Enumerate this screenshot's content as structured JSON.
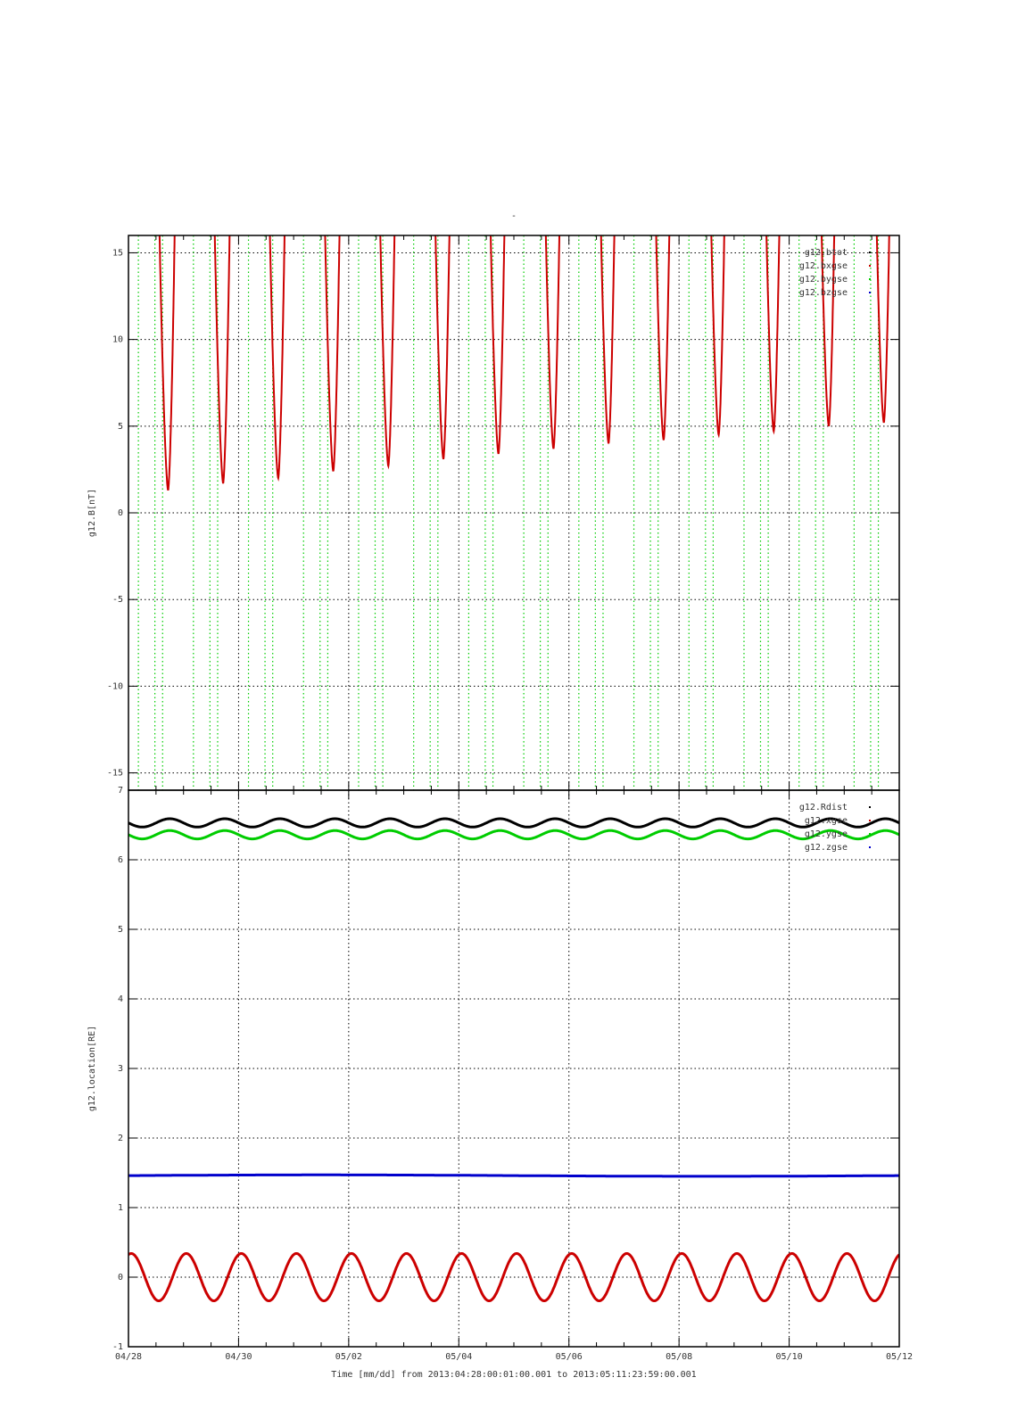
{
  "page": {
    "title": "-",
    "footer": "Time [mm/dd]  from 2013:04:28:00:01:00.001  to  2013:05:11:23:59:00.001"
  },
  "chart_data": [
    {
      "type": "line",
      "ylabel": "g12.B[nT]",
      "xlabel": "",
      "xlim": [
        "04/28",
        "05/12"
      ],
      "ylim": [
        -16,
        16
      ],
      "ytick_labels": [
        "15",
        "10",
        "5",
        "0",
        "-5",
        "-10",
        "-15"
      ],
      "yticks": [
        15,
        10,
        5,
        0,
        -5,
        -10,
        -15
      ],
      "grid": true,
      "legend": "top-right",
      "series": [
        {
          "name": "g12.btot",
          "color": "#000000",
          "values": []
        },
        {
          "name": "g12.bxgse",
          "color": "#cc0000",
          "minima_day_offsets": [
            0.72,
            1.72,
            2.72,
            3.72,
            4.72,
            5.72,
            6.72,
            7.72,
            8.72,
            9.72,
            10.72,
            11.72,
            12.72,
            13.72
          ],
          "minima_values": [
            1.3,
            1.7,
            2.0,
            2.4,
            2.7,
            3.1,
            3.4,
            3.7,
            4.0,
            4.2,
            4.5,
            4.7,
            5.0,
            5.2
          ]
        },
        {
          "name": "g12.bygse",
          "color": "#00cc00",
          "values": []
        },
        {
          "name": "g12.bzgse",
          "color": "#0000cc",
          "values": []
        }
      ]
    },
    {
      "type": "line",
      "ylabel": "g12.location[RE]",
      "xlabel": "Time [mm/dd]  from 2013:04:28:00:01:00.001  to  2013:05:11:23:59:00.001",
      "xlim": [
        "04/28",
        "05/12"
      ],
      "xtick_labels": [
        "04/28",
        "04/30",
        "05/02",
        "05/04",
        "05/06",
        "05/08",
        "05/10",
        "05/12"
      ],
      "ylim": [
        -1,
        7
      ],
      "ytick_labels": [
        "7",
        "6",
        "5",
        "4",
        "3",
        "2",
        "1",
        "0",
        "-1"
      ],
      "yticks": [
        7,
        6,
        5,
        4,
        3,
        2,
        1,
        0,
        -1
      ],
      "grid": true,
      "legend": "top-right",
      "series": [
        {
          "name": "g12.Rdist",
          "color": "#000000",
          "mean": 6.53,
          "amplitude": 0.06,
          "period_days": 1.0
        },
        {
          "name": "g12.xgse",
          "color": "#cc0000",
          "mean": 0.0,
          "amplitude": 0.34,
          "period_days": 1.0
        },
        {
          "name": "g12.ygse",
          "color": "#00cc00",
          "mean": 6.36,
          "amplitude": 0.06,
          "period_days": 1.0
        },
        {
          "name": "g12.zgse",
          "color": "#0000cc",
          "mean": 1.46,
          "amplitude": 0.01,
          "period_days": 14.0
        }
      ]
    }
  ]
}
